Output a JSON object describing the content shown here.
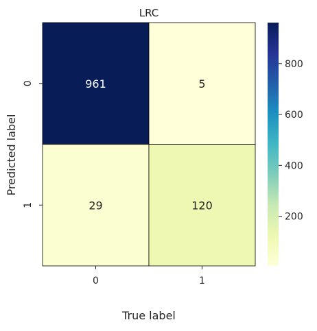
{
  "chart_data": {
    "type": "heatmap",
    "title": "LRC",
    "xlabel": "True label",
    "ylabel": "Predicted label",
    "x_categories": [
      "0",
      "1"
    ],
    "y_categories": [
      "0",
      "1"
    ],
    "values": [
      [
        961,
        5
      ],
      [
        29,
        120
      ]
    ],
    "annotations": [
      [
        "961",
        "5"
      ],
      [
        "29",
        "120"
      ]
    ],
    "colormap": "YlGnBu",
    "colorbar": {
      "min": 5,
      "max": 961,
      "ticks": [
        200,
        400,
        600,
        800
      ],
      "tick_labels": [
        "200",
        "400",
        "600",
        "800"
      ]
    },
    "text_colors": {
      "dark_cell": "#ffffff",
      "light_cell": "#262626"
    },
    "cell_edge_color": "#000000"
  }
}
